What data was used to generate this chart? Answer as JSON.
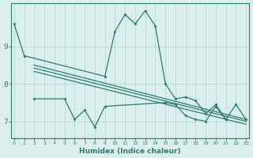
{
  "series1": {
    "x": [
      0,
      1,
      9,
      10,
      11,
      12,
      13,
      14,
      15,
      16,
      17,
      18,
      19,
      20,
      21,
      22,
      23
    ],
    "y": [
      9.6,
      8.75,
      8.2,
      9.4,
      9.85,
      9.6,
      9.95,
      9.55,
      8.0,
      7.6,
      7.65,
      7.55,
      7.2,
      7.45,
      7.05,
      7.45,
      7.05
    ]
  },
  "series2": {
    "x": [
      2,
      5,
      6,
      7,
      8,
      9,
      15,
      16,
      17,
      18,
      19,
      20,
      21
    ],
    "y": [
      7.6,
      7.6,
      7.05,
      7.3,
      6.85,
      7.4,
      7.5,
      7.45,
      7.15,
      7.05,
      7.0,
      7.4,
      7.05
    ]
  },
  "trend1": {
    "x": [
      2,
      23
    ],
    "y": [
      8.5,
      7.05
    ]
  },
  "trend2": {
    "x": [
      2,
      23
    ],
    "y": [
      8.42,
      7.0
    ]
  },
  "trend3": {
    "x": [
      2,
      23
    ],
    "y": [
      8.33,
      6.92
    ]
  },
  "color": "#2d7d6e",
  "bg_color": "#daeeed",
  "grid_color": "#b8d8d5",
  "xlabel": "Humidex (Indice chaleur)",
  "xlim": [
    0,
    23
  ],
  "ylim": [
    6.55,
    10.15
  ],
  "yticks": [
    7,
    8,
    9
  ],
  "xticks": [
    0,
    1,
    2,
    3,
    4,
    5,
    6,
    7,
    8,
    9,
    10,
    11,
    12,
    13,
    14,
    15,
    16,
    17,
    18,
    19,
    20,
    21,
    22,
    23
  ]
}
